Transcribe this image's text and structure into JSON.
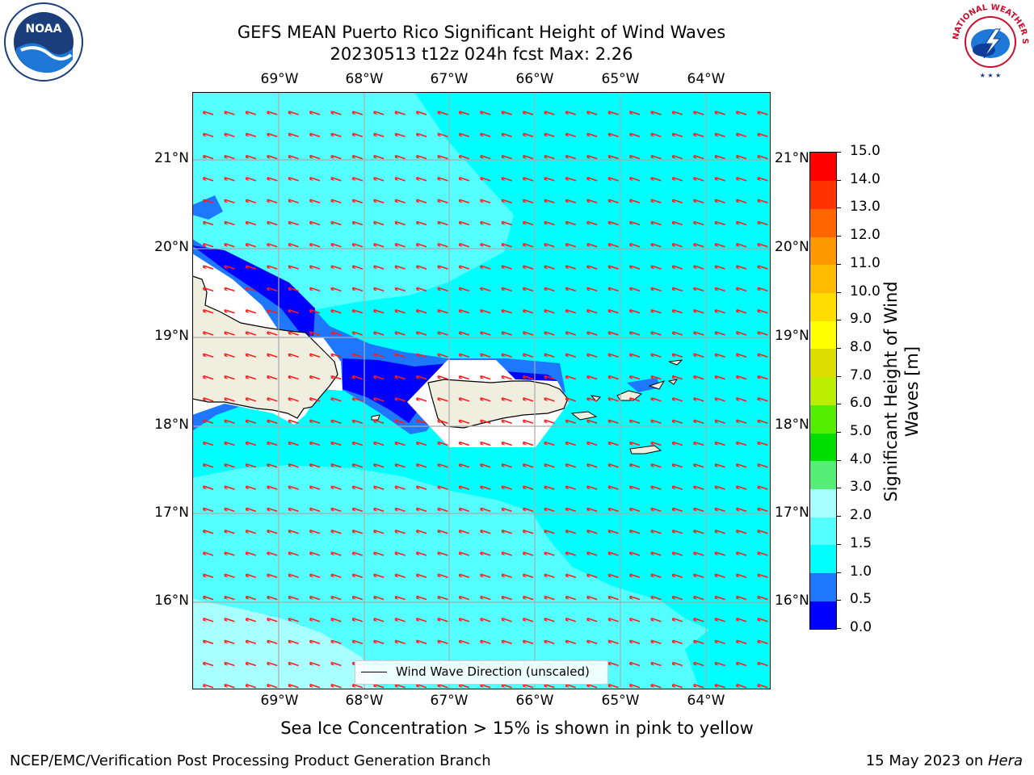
{
  "title_line1": "GEFS MEAN Puerto Rico Significant Height of Wind Waves",
  "title_line2": "20230513 t12z 024h fcst   Max: 2.26",
  "logos": {
    "left": "NOAA",
    "right": "NATIONAL WEATHER SERVICE"
  },
  "lon_labels": [
    "69°W",
    "68°W",
    "67°W",
    "66°W",
    "65°W",
    "64°W"
  ],
  "lat_labels": [
    "21°N",
    "20°N",
    "19°N",
    "18°N",
    "17°N",
    "16°N"
  ],
  "legend_text": "Wind Wave Direction (unscaled)",
  "colorbar": {
    "label": "Significant Height of Wind Waves [m]",
    "ticks": [
      "0.0",
      "0.5",
      "1.0",
      "1.5",
      "2.0",
      "3.0",
      "4.0",
      "5.0",
      "6.0",
      "7.0",
      "8.0",
      "9.0",
      "10.0",
      "11.0",
      "12.0",
      "13.0",
      "14.0",
      "15.0"
    ],
    "colors": [
      "#0000ff",
      "#1e78ff",
      "#00ffff",
      "#55ffff",
      "#aaffff",
      "#55ee77",
      "#00dd00",
      "#55ee00",
      "#bbee00",
      "#dddd00",
      "#ffff00",
      "#ffdd00",
      "#ffbb00",
      "#ff9900",
      "#ff6600",
      "#ff3300",
      "#ff0000"
    ]
  },
  "sea_ice_note": "Sea Ice Concentration > 15% is shown in pink to yellow",
  "footer_left": "NCEP/EMC/Verification Post Processing Product Generation Branch",
  "footer_right_prefix": "15 May 2023 on ",
  "footer_right_host": "Hera"
}
